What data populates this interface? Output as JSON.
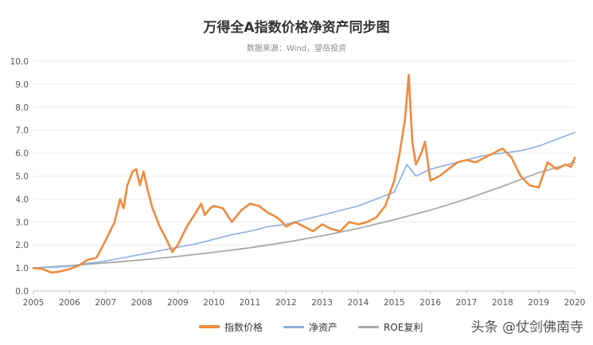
{
  "chart_data": {
    "type": "line",
    "title": "万得全A指数价格净资产同步图",
    "subtitle": "数据来源：Wind，望岳投资",
    "xlim": [
      2005,
      2020
    ],
    "ylim": [
      0,
      10
    ],
    "x_ticks": [
      "2005",
      "2006",
      "2007",
      "2008",
      "2009",
      "2010",
      "2011",
      "2012",
      "2013",
      "2014",
      "2015",
      "2016",
      "2017",
      "2018",
      "2019",
      "2020"
    ],
    "y_ticks": [
      "0.0",
      "1.0",
      "2.0",
      "3.0",
      "4.0",
      "5.0",
      "6.0",
      "7.0",
      "8.0",
      "9.0",
      "10.0"
    ],
    "grid": "horizontal",
    "legend_position": "bottom",
    "series": [
      {
        "name": "指数价格",
        "color": "#f08a3c",
        "points": [
          [
            2005.0,
            1.0
          ],
          [
            2005.25,
            0.95
          ],
          [
            2005.5,
            0.8
          ],
          [
            2005.75,
            0.85
          ],
          [
            2006.0,
            0.95
          ],
          [
            2006.25,
            1.1
          ],
          [
            2006.5,
            1.35
          ],
          [
            2006.75,
            1.45
          ],
          [
            2007.0,
            2.2
          ],
          [
            2007.25,
            3.0
          ],
          [
            2007.4,
            4.0
          ],
          [
            2007.5,
            3.6
          ],
          [
            2007.6,
            4.6
          ],
          [
            2007.75,
            5.2
          ],
          [
            2007.85,
            5.3
          ],
          [
            2007.95,
            4.6
          ],
          [
            2008.05,
            5.2
          ],
          [
            2008.15,
            4.5
          ],
          [
            2008.3,
            3.6
          ],
          [
            2008.5,
            2.8
          ],
          [
            2008.7,
            2.2
          ],
          [
            2008.85,
            1.7
          ],
          [
            2009.0,
            2.0
          ],
          [
            2009.25,
            2.8
          ],
          [
            2009.5,
            3.4
          ],
          [
            2009.65,
            3.8
          ],
          [
            2009.75,
            3.3
          ],
          [
            2009.9,
            3.6
          ],
          [
            2010.0,
            3.7
          ],
          [
            2010.25,
            3.6
          ],
          [
            2010.5,
            3.0
          ],
          [
            2010.75,
            3.5
          ],
          [
            2011.0,
            3.8
          ],
          [
            2011.25,
            3.7
          ],
          [
            2011.5,
            3.4
          ],
          [
            2011.75,
            3.2
          ],
          [
            2011.9,
            3.0
          ],
          [
            2012.0,
            2.8
          ],
          [
            2012.25,
            3.0
          ],
          [
            2012.5,
            2.8
          ],
          [
            2012.75,
            2.6
          ],
          [
            2013.0,
            2.9
          ],
          [
            2013.25,
            2.7
          ],
          [
            2013.5,
            2.6
          ],
          [
            2013.75,
            3.0
          ],
          [
            2014.0,
            2.9
          ],
          [
            2014.25,
            3.0
          ],
          [
            2014.5,
            3.2
          ],
          [
            2014.75,
            3.7
          ],
          [
            2015.0,
            4.8
          ],
          [
            2015.15,
            6.0
          ],
          [
            2015.3,
            7.5
          ],
          [
            2015.4,
            9.4
          ],
          [
            2015.5,
            6.5
          ],
          [
            2015.6,
            5.5
          ],
          [
            2015.75,
            6.0
          ],
          [
            2015.85,
            6.5
          ],
          [
            2016.0,
            4.8
          ],
          [
            2016.25,
            5.0
          ],
          [
            2016.5,
            5.3
          ],
          [
            2016.75,
            5.6
          ],
          [
            2017.0,
            5.7
          ],
          [
            2017.25,
            5.6
          ],
          [
            2017.5,
            5.8
          ],
          [
            2017.75,
            6.0
          ],
          [
            2018.0,
            6.2
          ],
          [
            2018.25,
            5.8
          ],
          [
            2018.5,
            5.0
          ],
          [
            2018.75,
            4.6
          ],
          [
            2019.0,
            4.5
          ],
          [
            2019.25,
            5.6
          ],
          [
            2019.5,
            5.3
          ],
          [
            2019.75,
            5.5
          ],
          [
            2019.9,
            5.4
          ],
          [
            2020.0,
            5.8
          ]
        ]
      },
      {
        "name": "净资产",
        "color": "#8ab0dc",
        "points": [
          [
            2005.0,
            1.0
          ],
          [
            2005.5,
            1.03
          ],
          [
            2006.0,
            1.08
          ],
          [
            2006.5,
            1.2
          ],
          [
            2007.0,
            1.3
          ],
          [
            2007.5,
            1.45
          ],
          [
            2008.0,
            1.6
          ],
          [
            2008.5,
            1.75
          ],
          [
            2009.0,
            1.9
          ],
          [
            2009.5,
            2.05
          ],
          [
            2010.0,
            2.25
          ],
          [
            2010.5,
            2.45
          ],
          [
            2011.0,
            2.6
          ],
          [
            2011.5,
            2.8
          ],
          [
            2012.0,
            2.9
          ],
          [
            2012.5,
            3.1
          ],
          [
            2013.0,
            3.3
          ],
          [
            2013.5,
            3.5
          ],
          [
            2014.0,
            3.7
          ],
          [
            2014.5,
            4.0
          ],
          [
            2015.0,
            4.3
          ],
          [
            2015.35,
            5.5
          ],
          [
            2015.6,
            5.0
          ],
          [
            2016.0,
            5.3
          ],
          [
            2016.5,
            5.5
          ],
          [
            2017.0,
            5.7
          ],
          [
            2017.5,
            5.9
          ],
          [
            2018.0,
            6.0
          ],
          [
            2018.5,
            6.1
          ],
          [
            2019.0,
            6.3
          ],
          [
            2019.5,
            6.6
          ],
          [
            2020.0,
            6.9
          ]
        ]
      },
      {
        "name": "ROE复利",
        "color": "#a8a8a8",
        "points": [
          [
            2005.0,
            1.0
          ],
          [
            2006.0,
            1.1
          ],
          [
            2007.0,
            1.22
          ],
          [
            2008.0,
            1.35
          ],
          [
            2009.0,
            1.5
          ],
          [
            2010.0,
            1.68
          ],
          [
            2011.0,
            1.88
          ],
          [
            2012.0,
            2.12
          ],
          [
            2013.0,
            2.4
          ],
          [
            2014.0,
            2.72
          ],
          [
            2015.0,
            3.1
          ],
          [
            2016.0,
            3.52
          ],
          [
            2017.0,
            4.0
          ],
          [
            2018.0,
            4.55
          ],
          [
            2019.0,
            5.15
          ],
          [
            2020.0,
            5.6
          ]
        ]
      }
    ]
  },
  "watermark": "头条 @仗剑佛南寺"
}
